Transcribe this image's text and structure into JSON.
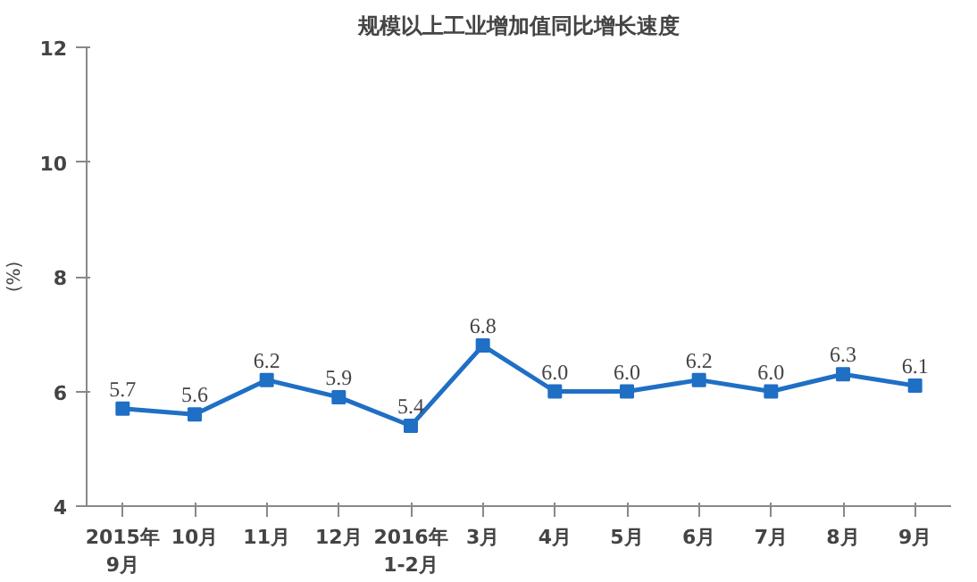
{
  "chart_data": {
    "type": "line",
    "title": "规模以上工业增加值同比增长速度",
    "ylabel": "(%)",
    "categories": [
      "2015年\n9月",
      "10月",
      "11月",
      "12月",
      "2016年\n1-2月",
      "3月",
      "4月",
      "5月",
      "6月",
      "7月",
      "8月",
      "9月"
    ],
    "series": [
      {
        "color": "#1f6fc5",
        "values": [
          5.7,
          5.6,
          6.2,
          5.9,
          5.4,
          6.8,
          6.0,
          6.0,
          6.2,
          6.0,
          6.3,
          6.1
        ],
        "value_labels": [
          "5.7",
          "5.6",
          "6.2",
          "5.9",
          "5.4",
          "6.8",
          "6.0",
          "6.0",
          "6.2",
          "6.0",
          "6.3",
          "6.1"
        ]
      }
    ],
    "ylim": [
      4,
      12
    ],
    "yticks": [
      4,
      6,
      8,
      10,
      12
    ],
    "marker": "square",
    "line_style": "solid"
  }
}
